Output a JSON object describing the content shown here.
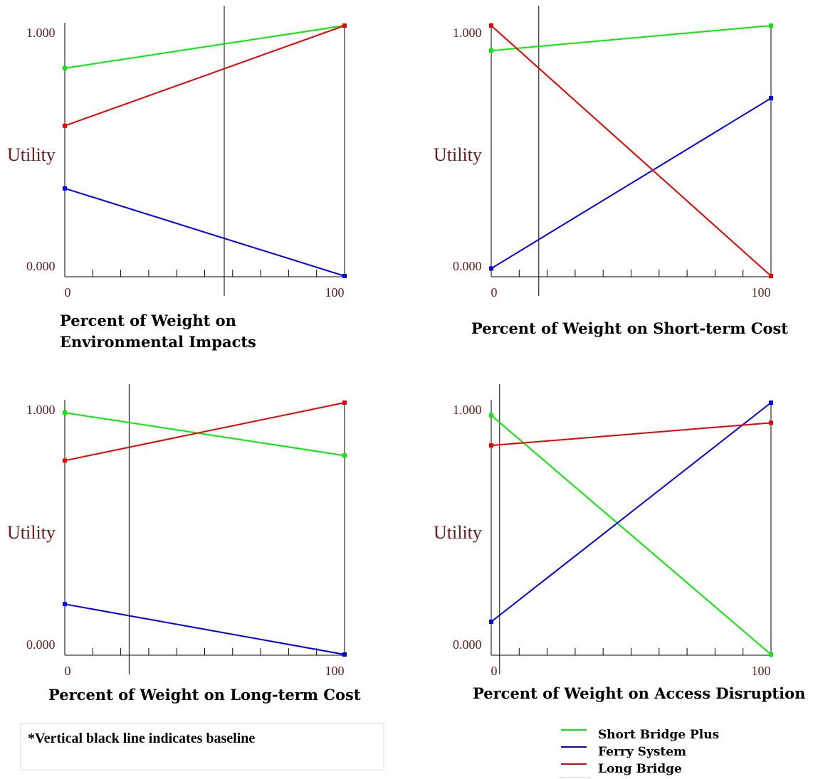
{
  "chart_data": [
    {
      "type": "line",
      "title": "",
      "xlabel": "Percent of Weight on Environmental Impacts",
      "ylabel": "Utility",
      "x": [
        0,
        100
      ],
      "xlim": [
        0,
        100
      ],
      "ylim": [
        0,
        1
      ],
      "x_tick_labels": [
        "0",
        "100"
      ],
      "y_tick_labels": [
        "0.000",
        "1.000"
      ],
      "baseline_x": 57,
      "series": [
        {
          "name": "Short Bridge Plus",
          "color": "#00ee00",
          "values": [
            0.83,
            1.0
          ]
        },
        {
          "name": "Ferry System",
          "color": "#0000ee",
          "values": [
            0.35,
            0.0
          ]
        },
        {
          "name": "Long Bridge",
          "color": "#ee0000",
          "values": [
            0.6,
            1.0
          ]
        }
      ]
    },
    {
      "type": "line",
      "title": "",
      "xlabel": "Percent of Weight on Short-term Cost",
      "ylabel": "Utility",
      "x": [
        0,
        100
      ],
      "xlim": [
        0,
        100
      ],
      "ylim": [
        0,
        1
      ],
      "x_tick_labels": [
        "0",
        "100"
      ],
      "y_tick_labels": [
        "0.000",
        "1.000"
      ],
      "baseline_x": 17,
      "series": [
        {
          "name": "Short Bridge Plus",
          "color": "#00ee00",
          "values": [
            0.9,
            1.0
          ]
        },
        {
          "name": "Ferry System",
          "color": "#0000ee",
          "values": [
            0.03,
            0.71
          ]
        },
        {
          "name": "Long Bridge",
          "color": "#ee0000",
          "values": [
            1.0,
            0.0
          ]
        }
      ]
    },
    {
      "type": "line",
      "title": "",
      "xlabel": "Percent of Weight on Long-term Cost",
      "ylabel": "Utility",
      "x": [
        0,
        100
      ],
      "xlim": [
        0,
        100
      ],
      "ylim": [
        0,
        1
      ],
      "x_tick_labels": [
        "0",
        "100"
      ],
      "y_tick_labels": [
        "0.000",
        "1.000"
      ],
      "baseline_x": 23,
      "series": [
        {
          "name": "Short Bridge Plus",
          "color": "#00ee00",
          "values": [
            0.96,
            0.79
          ]
        },
        {
          "name": "Ferry System",
          "color": "#0000ee",
          "values": [
            0.2,
            0.0
          ]
        },
        {
          "name": "Long Bridge",
          "color": "#ee0000",
          "values": [
            0.77,
            1.0
          ]
        }
      ]
    },
    {
      "type": "line",
      "title": "",
      "xlabel": "Percent of Weight on Access Disruption",
      "ylabel": "Utility",
      "x": [
        0,
        100
      ],
      "xlim": [
        0,
        100
      ],
      "ylim": [
        0,
        1
      ],
      "x_tick_labels": [
        "0",
        "100"
      ],
      "y_tick_labels": [
        "0.000",
        "1.000"
      ],
      "baseline_x": 3,
      "series": [
        {
          "name": "Short Bridge Plus",
          "color": "#00ee00",
          "values": [
            0.95,
            0.0
          ]
        },
        {
          "name": "Ferry System",
          "color": "#0000ee",
          "values": [
            0.13,
            1.0
          ]
        },
        {
          "name": "Long Bridge",
          "color": "#ee0000",
          "values": [
            0.83,
            0.92
          ]
        }
      ]
    }
  ],
  "note": "*Vertical black line indicates baseline",
  "legend": [
    {
      "name": "Short Bridge Plus",
      "color": "#00ee00"
    },
    {
      "name": "Ferry System",
      "color": "#0000ee"
    },
    {
      "name": "Long Bridge",
      "color": "#ee0000"
    }
  ]
}
